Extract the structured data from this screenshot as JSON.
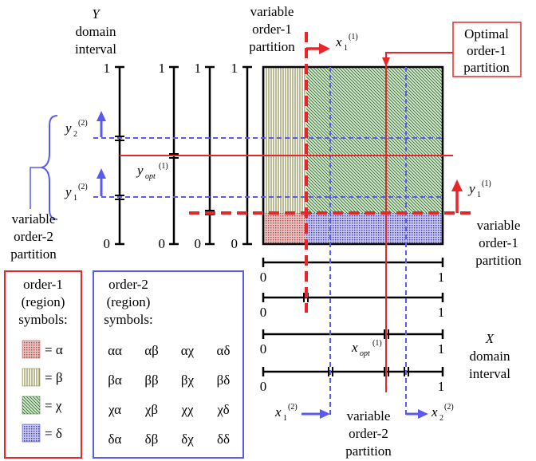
{
  "labels": {
    "y_axis_var": "Y",
    "y_domain_line1": "domain",
    "y_domain_line2": "interval",
    "top_var_line1": "variable",
    "top_var_line2": "order-1",
    "top_var_line3": "partition",
    "optimal_line1": "Optimal",
    "optimal_line2": "order-1",
    "optimal_line3": "partition",
    "right_var_line1": "variable",
    "right_var_line2": "order-1",
    "right_var_line3": "partition",
    "left_var_line1": "variable",
    "left_var_line2": "order-2",
    "left_var_line3": "partition",
    "bottom_var_line1": "variable",
    "bottom_var_line2": "order-2",
    "bottom_var_line3": "partition",
    "x_axis_var": "X",
    "x_domain_line1": "domain",
    "x_domain_line2": "interval"
  },
  "symbols": {
    "x1_1_base": "x",
    "x1_1_sub": "1",
    "x1_1_sup": "(1)",
    "y1_1_base": "y",
    "y1_1_sub": "1",
    "y1_1_sup": "(1)",
    "y2_2_base": "y",
    "y2_2_sub": "2",
    "y2_2_sup": "(2)",
    "y1_2_base": "y",
    "y1_2_sub": "1",
    "y1_2_sup": "(2)",
    "yopt_base": "y",
    "yopt_sub": "opt",
    "yopt_sup": "(1)",
    "xopt_base": "x",
    "xopt_sub": "opt",
    "xopt_sup": "(1)",
    "x1_2_base": "x",
    "x1_2_sub": "1",
    "x1_2_sup": "(2)",
    "x2_2_base": "x",
    "x2_2_sub": "2",
    "x2_2_sup": "(2)"
  },
  "ticks": {
    "y_one": "1",
    "y_zero": "0",
    "x_zero": "0",
    "x_one": "1"
  },
  "legend1": {
    "title_line1": "order-1",
    "title_line2": "(region)",
    "title_line3": "symbols:",
    "items": [
      {
        "eq": "= α",
        "pattern": "dots",
        "color": "#c06060"
      },
      {
        "eq": "= β",
        "pattern": "vertical",
        "color": "#888833"
      },
      {
        "eq": "= χ",
        "pattern": "diagonal",
        "color": "#2e6a2e"
      },
      {
        "eq": "= δ",
        "pattern": "dots",
        "color": "#3a3ab0"
      }
    ]
  },
  "legend2": {
    "title_line1": "order-2",
    "title_line2": "(region)",
    "title_line3": "symbols:",
    "rows": [
      [
        "αα",
        "αβ",
        "αχ",
        "αδ"
      ],
      [
        "βα",
        "ββ",
        "βχ",
        "βδ"
      ],
      [
        "χα",
        "χβ",
        "χχ",
        "χδ"
      ],
      [
        "δα",
        "δβ",
        "δχ",
        "δδ"
      ]
    ]
  },
  "colors": {
    "red": "#e8262a",
    "blue": "#5a5af0",
    "legend1_border": "#e8262a",
    "legend2_border": "#5a5af0"
  }
}
